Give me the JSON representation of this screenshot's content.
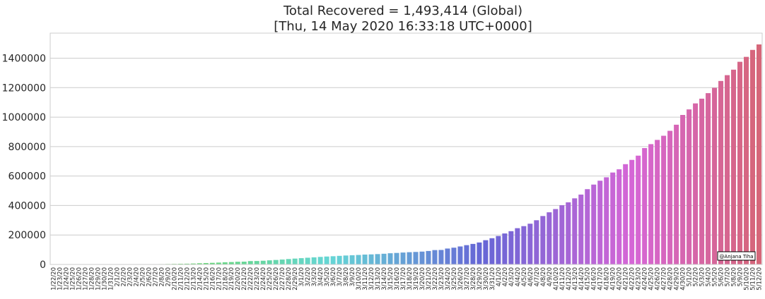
{
  "chart_data": {
    "type": "bar",
    "title": "Total Recovered = 1,493,414 (Global)",
    "subtitle": "[Thu, 14 May 2020 16:33:18 UTC+0000]",
    "xlabel": "",
    "ylabel": "",
    "ylim": [
      0,
      1570000
    ],
    "yticks": [
      0,
      200000,
      400000,
      600000,
      800000,
      1000000,
      1200000,
      1400000
    ],
    "grid": "horizontal",
    "legend": "none",
    "palette": "husl-gradient",
    "categories": [
      "1/22/20",
      "1/23/20",
      "1/24/20",
      "1/25/20",
      "1/26/20",
      "1/27/20",
      "1/28/20",
      "1/29/20",
      "1/30/20",
      "1/31/20",
      "2/1/20",
      "2/2/20",
      "2/3/20",
      "2/4/20",
      "2/5/20",
      "2/6/20",
      "2/7/20",
      "2/8/20",
      "2/9/20",
      "2/10/20",
      "2/11/20",
      "2/12/20",
      "2/13/20",
      "2/14/20",
      "2/15/20",
      "2/16/20",
      "2/17/20",
      "2/18/20",
      "2/19/20",
      "2/20/20",
      "2/21/20",
      "2/22/20",
      "2/23/20",
      "2/24/20",
      "2/25/20",
      "2/26/20",
      "2/27/20",
      "2/28/20",
      "2/29/20",
      "3/1/20",
      "3/2/20",
      "3/3/20",
      "3/4/20",
      "3/5/20",
      "3/6/20",
      "3/7/20",
      "3/8/20",
      "3/9/20",
      "3/10/20",
      "3/11/20",
      "3/12/20",
      "3/13/20",
      "3/14/20",
      "3/15/20",
      "3/16/20",
      "3/17/20",
      "3/18/20",
      "3/19/20",
      "3/20/20",
      "3/21/20",
      "3/22/20",
      "3/23/20",
      "3/24/20",
      "3/25/20",
      "3/26/20",
      "3/27/20",
      "3/28/20",
      "3/29/20",
      "3/30/20",
      "3/31/20",
      "4/1/20",
      "4/2/20",
      "4/3/20",
      "4/4/20",
      "4/5/20",
      "4/6/20",
      "4/7/20",
      "4/8/20",
      "4/9/20",
      "4/10/20",
      "4/11/20",
      "4/12/20",
      "4/13/20",
      "4/14/20",
      "4/15/20",
      "4/16/20",
      "4/17/20",
      "4/18/20",
      "4/19/20",
      "4/20/20",
      "4/21/20",
      "4/22/20",
      "4/23/20",
      "4/24/20",
      "4/25/20",
      "4/26/20",
      "4/27/20",
      "4/28/20",
      "4/29/20",
      "4/30/20",
      "5/1/20",
      "5/2/20",
      "5/3/20",
      "5/4/20",
      "5/5/20",
      "5/6/20",
      "5/7/20",
      "5/8/20",
      "5/9/20",
      "5/10/20",
      "5/11/20",
      "5/12/20"
    ],
    "values": [
      28,
      30,
      36,
      39,
      52,
      61,
      107,
      126,
      143,
      222,
      284,
      472,
      623,
      852,
      1124,
      1487,
      2011,
      2616,
      3244,
      3946,
      4683,
      5150,
      6295,
      8058,
      9395,
      10865,
      12583,
      14352,
      16121,
      18177,
      18890,
      22886,
      23394,
      25227,
      27905,
      30384,
      33277,
      36711,
      39782,
      42716,
      45602,
      48229,
      51170,
      53796,
      55865,
      58358,
      60694,
      62494,
      64404,
      67003,
      68324,
      70251,
      72624,
      76034,
      78088,
      80840,
      83207,
      84854,
      87256,
      91349,
      97487,
      98352,
      108000,
      113787,
      122150,
      130915,
      139415,
      149082,
      164566,
      178034,
      193177,
      210263,
      225796,
      246152,
      260012,
      276515,
      300054,
      328661,
      353975,
      376096,
      402110,
      421722,
      448655,
      474261,
      511019,
      542107,
      568343,
      591530,
      623903,
      645738,
      680680,
      709694,
      738486,
      789783,
      816685,
      845306,
      873503,
      906988,
      948425,
      1014753,
      1052415,
      1093112,
      1125236,
      1162724,
      1198832,
      1245413,
      1284741,
      1322050,
      1375624,
      1408980,
      1456209,
      1493414
    ],
    "watermark": "@Anjana Tiha"
  }
}
